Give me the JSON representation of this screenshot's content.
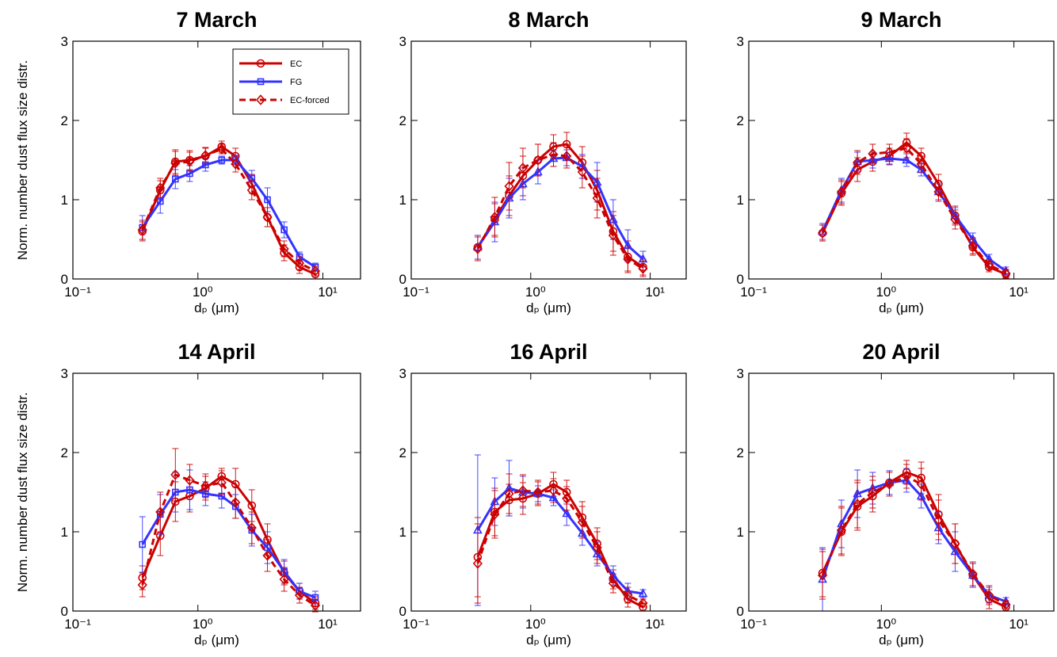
{
  "chart_data": [
    {
      "type": "line",
      "title": "7 March",
      "xlabel": "dₚ (μm)",
      "ylabel": "Norm. number dust flux size distr.",
      "x": [
        0.36,
        0.5,
        0.66,
        0.86,
        1.15,
        1.55,
        2.0,
        2.7,
        3.6,
        4.9,
        6.5,
        8.7
      ],
      "xlim": [
        0.1,
        20
      ],
      "xticks": [
        {
          "value": 0.1,
          "label": "10⁻¹"
        },
        {
          "value": 1,
          "label": "10⁰"
        },
        {
          "value": 10,
          "label": "10¹"
        }
      ],
      "log_x": true,
      "ylim": [
        0,
        3
      ],
      "yticks": [
        0,
        1,
        2,
        3
      ],
      "legend": "upper right",
      "series": [
        {
          "name": "EC",
          "color": "#cc0000",
          "dash": false,
          "marker": "circle",
          "values": [
            0.6,
            1.12,
            1.48,
            1.5,
            1.55,
            1.67,
            1.55,
            1.2,
            0.78,
            0.33,
            0.15,
            0.06
          ],
          "errors": [
            0.12,
            0.12,
            0.15,
            0.12,
            0.1,
            0.07,
            0.1,
            0.12,
            0.12,
            0.1,
            0.08,
            0.06
          ]
        },
        {
          "name": "FG",
          "color": "#3333ff",
          "dash": false,
          "marker": "square",
          "values": [
            0.65,
            0.98,
            1.26,
            1.33,
            1.44,
            1.5,
            1.5,
            1.27,
            1.0,
            0.62,
            0.28,
            0.15
          ],
          "errors": [
            0.15,
            0.15,
            0.12,
            0.1,
            0.08,
            0.05,
            0.06,
            0.1,
            0.15,
            0.1,
            0.06,
            0.05
          ]
        },
        {
          "name": "EC-forced",
          "color": "#cc0000",
          "dash": true,
          "marker": "diamond",
          "values": [
            0.62,
            1.15,
            1.46,
            1.48,
            1.56,
            1.64,
            1.45,
            1.12,
            0.78,
            0.38,
            0.2,
            0.1
          ],
          "errors": [
            0.12,
            0.12,
            0.15,
            0.12,
            0.1,
            0.06,
            0.1,
            0.12,
            0.12,
            0.1,
            0.08,
            0.06
          ]
        }
      ]
    },
    {
      "type": "line",
      "title": "8 March",
      "xlabel": "dₚ (μm)",
      "x": [
        0.36,
        0.5,
        0.66,
        0.86,
        1.15,
        1.55,
        2.0,
        2.7,
        3.6,
        4.9,
        6.5,
        8.7
      ],
      "xlim": [
        0.1,
        20
      ],
      "xticks": [
        {
          "value": 0.1,
          "label": "10⁻¹"
        },
        {
          "value": 1,
          "label": "10⁰"
        },
        {
          "value": 10,
          "label": "10¹"
        }
      ],
      "log_x": true,
      "ylim": [
        0,
        3
      ],
      "yticks": [
        0,
        1,
        2,
        3
      ],
      "series": [
        {
          "color": "#cc0000",
          "dash": false,
          "marker": "circle",
          "values": [
            0.4,
            0.75,
            1.05,
            1.3,
            1.5,
            1.67,
            1.7,
            1.47,
            1.12,
            0.6,
            0.28,
            0.15
          ],
          "errors": [
            0.15,
            0.2,
            0.25,
            0.25,
            0.2,
            0.15,
            0.15,
            0.2,
            0.25,
            0.25,
            0.2,
            0.1
          ]
        },
        {
          "color": "#3333ff",
          "dash": false,
          "marker": "triangle",
          "values": [
            0.4,
            0.72,
            1.02,
            1.2,
            1.35,
            1.52,
            1.53,
            1.42,
            1.22,
            0.75,
            0.42,
            0.25
          ],
          "errors": [
            0.15,
            0.25,
            0.25,
            0.2,
            0.15,
            0.1,
            0.1,
            0.15,
            0.25,
            0.25,
            0.2,
            0.1
          ]
        },
        {
          "color": "#cc0000",
          "dash": true,
          "marker": "diamond",
          "values": [
            0.38,
            0.78,
            1.17,
            1.4,
            1.5,
            1.57,
            1.55,
            1.35,
            1.02,
            0.55,
            0.25,
            0.13
          ],
          "errors": [
            0.15,
            0.25,
            0.3,
            0.25,
            0.2,
            0.15,
            0.15,
            0.2,
            0.25,
            0.25,
            0.15,
            0.1
          ]
        }
      ]
    },
    {
      "type": "line",
      "title": "9 March",
      "xlabel": "dₚ (μm)",
      "x": [
        0.36,
        0.5,
        0.66,
        0.86,
        1.15,
        1.55,
        2.0,
        2.7,
        3.6,
        4.9,
        6.5,
        8.7
      ],
      "xlim": [
        0.1,
        20
      ],
      "xticks": [
        {
          "value": 0.1,
          "label": "10⁻¹"
        },
        {
          "value": 1,
          "label": "10⁰"
        },
        {
          "value": 10,
          "label": "10¹"
        }
      ],
      "log_x": true,
      "ylim": [
        0,
        3
      ],
      "yticks": [
        0,
        1,
        2,
        3
      ],
      "series": [
        {
          "color": "#cc0000",
          "dash": false,
          "marker": "circle",
          "values": [
            0.58,
            1.08,
            1.38,
            1.48,
            1.55,
            1.72,
            1.55,
            1.2,
            0.8,
            0.4,
            0.15,
            0.06
          ],
          "errors": [
            0.1,
            0.15,
            0.15,
            0.12,
            0.1,
            0.12,
            0.1,
            0.12,
            0.12,
            0.1,
            0.06,
            0.05
          ]
        },
        {
          "color": "#3333ff",
          "dash": false,
          "marker": "triangle",
          "values": [
            0.6,
            1.12,
            1.48,
            1.5,
            1.52,
            1.5,
            1.38,
            1.1,
            0.8,
            0.5,
            0.25,
            0.1
          ],
          "errors": [
            0.1,
            0.15,
            0.12,
            0.1,
            0.08,
            0.08,
            0.08,
            0.1,
            0.1,
            0.08,
            0.06,
            0.05
          ]
        },
        {
          "color": "#cc0000",
          "dash": true,
          "marker": "diamond",
          "values": [
            0.58,
            1.1,
            1.47,
            1.58,
            1.6,
            1.65,
            1.45,
            1.1,
            0.75,
            0.42,
            0.18,
            0.07
          ],
          "errors": [
            0.1,
            0.15,
            0.15,
            0.12,
            0.1,
            0.12,
            0.1,
            0.12,
            0.12,
            0.1,
            0.06,
            0.05
          ]
        }
      ]
    },
    {
      "type": "line",
      "title": "14 April",
      "xlabel": "dₚ (μm)",
      "ylabel": "Norm. number dust flux size distr.",
      "x": [
        0.36,
        0.5,
        0.66,
        0.86,
        1.15,
        1.55,
        2.0,
        2.7,
        3.6,
        4.9,
        6.5,
        8.7
      ],
      "xlim": [
        0.1,
        20
      ],
      "xticks": [
        {
          "value": 0.1,
          "label": "10⁻¹"
        },
        {
          "value": 1,
          "label": "10⁰"
        },
        {
          "value": 10,
          "label": "10¹"
        }
      ],
      "log_x": true,
      "ylim": [
        0,
        3
      ],
      "yticks": [
        0,
        1,
        2,
        3
      ],
      "series": [
        {
          "color": "#cc0000",
          "dash": false,
          "marker": "circle",
          "values": [
            0.42,
            0.95,
            1.38,
            1.45,
            1.55,
            1.7,
            1.6,
            1.33,
            0.9,
            0.48,
            0.25,
            0.1
          ],
          "errors": [
            0.15,
            0.25,
            0.25,
            0.2,
            0.15,
            0.1,
            0.2,
            0.2,
            0.2,
            0.15,
            0.1,
            0.08
          ]
        },
        {
          "color": "#3333ff",
          "dash": false,
          "marker": "square",
          "values": [
            0.84,
            1.22,
            1.5,
            1.53,
            1.48,
            1.45,
            1.32,
            1.02,
            0.8,
            0.5,
            0.25,
            0.17
          ],
          "errors": [
            0.35,
            0.25,
            0.25,
            0.25,
            0.15,
            0.15,
            0.15,
            0.2,
            0.2,
            0.15,
            0.1,
            0.08
          ]
        },
        {
          "color": "#cc0000",
          "dash": true,
          "marker": "diamond",
          "values": [
            0.33,
            1.25,
            1.72,
            1.65,
            1.58,
            1.62,
            1.37,
            1.05,
            0.7,
            0.4,
            0.2,
            0.07
          ],
          "errors": [
            0.15,
            0.25,
            0.33,
            0.2,
            0.15,
            0.15,
            0.2,
            0.2,
            0.2,
            0.15,
            0.1,
            0.08
          ]
        }
      ]
    },
    {
      "type": "line",
      "title": "16 April",
      "xlabel": "dₚ (μm)",
      "x": [
        0.36,
        0.5,
        0.66,
        0.86,
        1.15,
        1.55,
        2.0,
        2.7,
        3.6,
        4.9,
        6.5,
        8.7
      ],
      "xlim": [
        0.1,
        20
      ],
      "xticks": [
        {
          "value": 0.1,
          "label": "10⁻¹"
        },
        {
          "value": 1,
          "label": "10⁰"
        },
        {
          "value": 10,
          "label": "10¹"
        }
      ],
      "log_x": true,
      "ylim": [
        0,
        3
      ],
      "yticks": [
        0,
        1,
        2,
        3
      ],
      "series": [
        {
          "color": "#cc0000",
          "dash": false,
          "marker": "circle",
          "values": [
            0.68,
            1.25,
            1.4,
            1.42,
            1.48,
            1.6,
            1.5,
            1.18,
            0.85,
            0.4,
            0.15,
            0.05
          ],
          "errors": [
            0.5,
            0.3,
            0.2,
            0.2,
            0.15,
            0.15,
            0.15,
            0.2,
            0.2,
            0.12,
            0.1,
            0.05
          ]
        },
        {
          "color": "#3333ff",
          "dash": false,
          "marker": "triangle",
          "values": [
            1.02,
            1.38,
            1.55,
            1.5,
            1.48,
            1.43,
            1.23,
            0.98,
            0.72,
            0.45,
            0.25,
            0.22
          ],
          "errors": [
            0.95,
            0.3,
            0.35,
            0.2,
            0.1,
            0.1,
            0.15,
            0.15,
            0.15,
            0.12,
            0.1,
            0.05
          ]
        },
        {
          "color": "#cc0000",
          "dash": true,
          "marker": "diamond",
          "values": [
            0.6,
            1.22,
            1.48,
            1.52,
            1.5,
            1.52,
            1.42,
            1.12,
            0.8,
            0.35,
            0.2,
            0.1
          ],
          "errors": [
            0.5,
            0.3,
            0.25,
            0.2,
            0.15,
            0.15,
            0.15,
            0.2,
            0.2,
            0.12,
            0.1,
            0.05
          ]
        }
      ]
    },
    {
      "type": "line",
      "title": "20 April",
      "xlabel": "dₚ (μm)",
      "x": [
        0.36,
        0.5,
        0.66,
        0.86,
        1.15,
        1.55,
        2.0,
        2.7,
        3.6,
        4.9,
        6.5,
        8.7
      ],
      "xlim": [
        0.1,
        20
      ],
      "xticks": [
        {
          "value": 0.1,
          "label": "10⁻¹"
        },
        {
          "value": 1,
          "label": "10⁰"
        },
        {
          "value": 10,
          "label": "10¹"
        }
      ],
      "log_x": true,
      "ylim": [
        0,
        3
      ],
      "yticks": [
        0,
        1,
        2,
        3
      ],
      "series": [
        {
          "color": "#cc0000",
          "dash": false,
          "marker": "circle",
          "values": [
            0.48,
            1.0,
            1.32,
            1.45,
            1.62,
            1.75,
            1.68,
            1.22,
            0.85,
            0.45,
            0.15,
            0.05
          ],
          "errors": [
            0.3,
            0.3,
            0.3,
            0.2,
            0.15,
            0.15,
            0.2,
            0.25,
            0.25,
            0.15,
            0.12,
            0.05
          ]
        },
        {
          "color": "#3333ff",
          "dash": false,
          "marker": "triangle",
          "values": [
            0.4,
            1.1,
            1.48,
            1.55,
            1.62,
            1.65,
            1.45,
            1.05,
            0.75,
            0.45,
            0.2,
            0.12
          ],
          "errors": [
            0.4,
            0.3,
            0.3,
            0.2,
            0.15,
            0.15,
            0.15,
            0.2,
            0.25,
            0.15,
            0.1,
            0.05
          ]
        },
        {
          "color": "#cc0000",
          "dash": true,
          "marker": "diamond",
          "values": [
            0.45,
            1.02,
            1.35,
            1.5,
            1.6,
            1.7,
            1.6,
            1.15,
            0.85,
            0.47,
            0.2,
            0.08
          ],
          "errors": [
            0.3,
            0.3,
            0.3,
            0.2,
            0.15,
            0.15,
            0.2,
            0.25,
            0.25,
            0.15,
            0.12,
            0.05
          ]
        }
      ]
    }
  ]
}
